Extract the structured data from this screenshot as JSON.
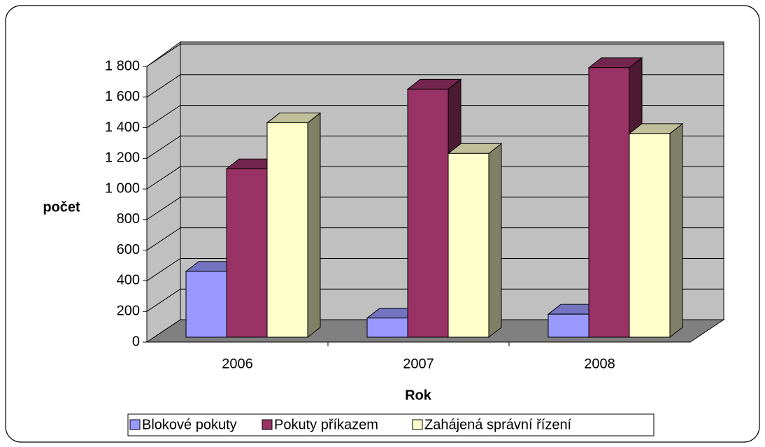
{
  "chart_data": {
    "type": "bar3d",
    "categories": [
      "2006",
      "2007",
      "2008"
    ],
    "series": [
      {
        "name": "Blokové pokuty",
        "color": "#9999ff",
        "values": [
          430,
          125,
          150
        ]
      },
      {
        "name": "Pokuty příkazem",
        "color": "#993366",
        "values": [
          1100,
          1620,
          1760
        ]
      },
      {
        "name": "Zahájená správní řízení",
        "color": "#ffffcc",
        "values": [
          1400,
          1200,
          1330
        ]
      }
    ],
    "ylabel": "počet",
    "xlabel": "Rok",
    "ylim": [
      0,
      1800
    ],
    "yticks": [
      0,
      200,
      400,
      600,
      800,
      {
        "value": 1000,
        "label": "1 000"
      },
      {
        "value": 1200,
        "label": "1 200"
      },
      {
        "value": 1400,
        "label": "1 400"
      },
      {
        "value": 1600,
        "label": "1 600"
      },
      {
        "value": 1800,
        "label": "1 800"
      }
    ],
    "grid": true,
    "legend": "bottom"
  }
}
